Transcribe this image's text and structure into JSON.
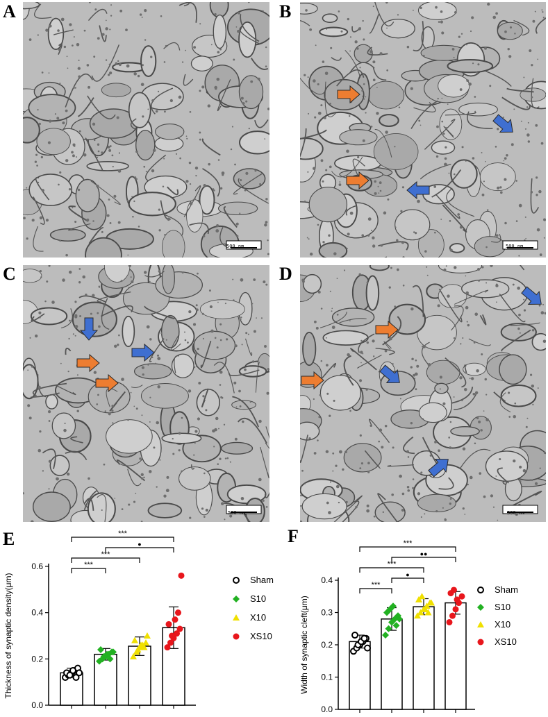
{
  "panels": {
    "A": {
      "letter": "A",
      "scale_bar": "500 nm"
    },
    "B": {
      "letter": "B",
      "scale_bar": "500 nm"
    },
    "C": {
      "letter": "C",
      "scale_bar": "500 nm"
    },
    "D": {
      "letter": "D",
      "scale_bar": "500 nm"
    },
    "E": {
      "letter": "E"
    },
    "F": {
      "letter": "F"
    }
  },
  "arrows": {
    "B": [
      {
        "color": "orange",
        "dir": "right"
      },
      {
        "color": "orange",
        "dir": "right"
      },
      {
        "color": "blue",
        "dir": "down-right"
      },
      {
        "color": "blue",
        "dir": "left"
      }
    ],
    "C": [
      {
        "color": "blue",
        "dir": "down"
      },
      {
        "color": "orange",
        "dir": "right"
      },
      {
        "color": "orange",
        "dir": "right"
      },
      {
        "color": "blue",
        "dir": "right"
      }
    ],
    "D": [
      {
        "color": "orange",
        "dir": "right"
      },
      {
        "color": "orange",
        "dir": "right"
      },
      {
        "color": "blue",
        "dir": "down-right"
      },
      {
        "color": "blue",
        "dir": "down-right"
      },
      {
        "color": "blue",
        "dir": "up-right"
      }
    ]
  },
  "colors": {
    "orange": "#ed7d31",
    "blue": "#3f6fd1",
    "Sham": "#000000",
    "S10": "#22b122",
    "X10": "#f0e000",
    "XS10": "#e8161c"
  },
  "chart_data": [
    {
      "type": "bar",
      "ylabel": "Thickness of synaptic density(μm)",
      "ylim": [
        0,
        0.6
      ],
      "yticks": [
        "0.0",
        "0.2",
        "0.4",
        "0.6"
      ],
      "categories": [
        "Sham",
        "S10",
        "X10",
        "XS10"
      ],
      "markers": [
        "circle-open",
        "diamond",
        "triangle",
        "circle"
      ],
      "means": [
        0.14,
        0.22,
        0.255,
        0.335
      ],
      "sd": [
        0.02,
        0.025,
        0.04,
        0.09
      ],
      "points": [
        [
          0.12,
          0.13,
          0.14,
          0.15,
          0.16,
          0.14,
          0.13,
          0.15,
          0.12,
          0.14
        ],
        [
          0.19,
          0.2,
          0.21,
          0.22,
          0.23,
          0.24,
          0.21,
          0.22,
          0.2,
          0.23
        ],
        [
          0.21,
          0.23,
          0.25,
          0.26,
          0.27,
          0.28,
          0.24,
          0.26,
          0.25,
          0.3
        ],
        [
          0.25,
          0.27,
          0.29,
          0.31,
          0.33,
          0.35,
          0.3,
          0.37,
          0.4,
          0.56
        ]
      ],
      "sig": [
        {
          "from": 0,
          "to": 3,
          "label": "***"
        },
        {
          "from": 1,
          "to": 3,
          "label": "●"
        },
        {
          "from": 0,
          "to": 2,
          "label": "***"
        },
        {
          "from": 0,
          "to": 1,
          "label": "***"
        }
      ],
      "legend": [
        "Sham",
        "S10",
        "X10",
        "XS10"
      ]
    },
    {
      "type": "bar",
      "ylabel": "Width of synaptic cleft(μm)",
      "ylim": [
        0,
        0.4
      ],
      "yticks": [
        "0.0",
        "0.1",
        "0.2",
        "0.3",
        "0.4"
      ],
      "categories": [
        "Sham",
        "S10",
        "X10",
        "XS10"
      ],
      "markers": [
        "circle-open",
        "diamond",
        "triangle",
        "circle"
      ],
      "means": [
        0.21,
        0.28,
        0.318,
        0.33
      ],
      "sd": [
        0.02,
        0.035,
        0.025,
        0.035
      ],
      "points": [
        [
          0.18,
          0.19,
          0.2,
          0.21,
          0.22,
          0.23,
          0.2,
          0.21,
          0.22,
          0.19
        ],
        [
          0.23,
          0.25,
          0.27,
          0.28,
          0.29,
          0.3,
          0.31,
          0.32,
          0.26,
          0.28
        ],
        [
          0.29,
          0.3,
          0.31,
          0.32,
          0.33,
          0.34,
          0.35,
          0.31,
          0.3,
          0.33
        ],
        [
          0.27,
          0.29,
          0.31,
          0.33,
          0.35,
          0.36,
          0.37,
          0.34
        ]
      ],
      "sig": [
        {
          "from": 0,
          "to": 3,
          "label": "***"
        },
        {
          "from": 1,
          "to": 3,
          "label": "●●"
        },
        {
          "from": 0,
          "to": 2,
          "label": "***"
        },
        {
          "from": 1,
          "to": 2,
          "label": "●"
        },
        {
          "from": 0,
          "to": 1,
          "label": "***"
        }
      ],
      "legend": [
        "Sham",
        "S10",
        "X10",
        "XS10"
      ]
    }
  ]
}
